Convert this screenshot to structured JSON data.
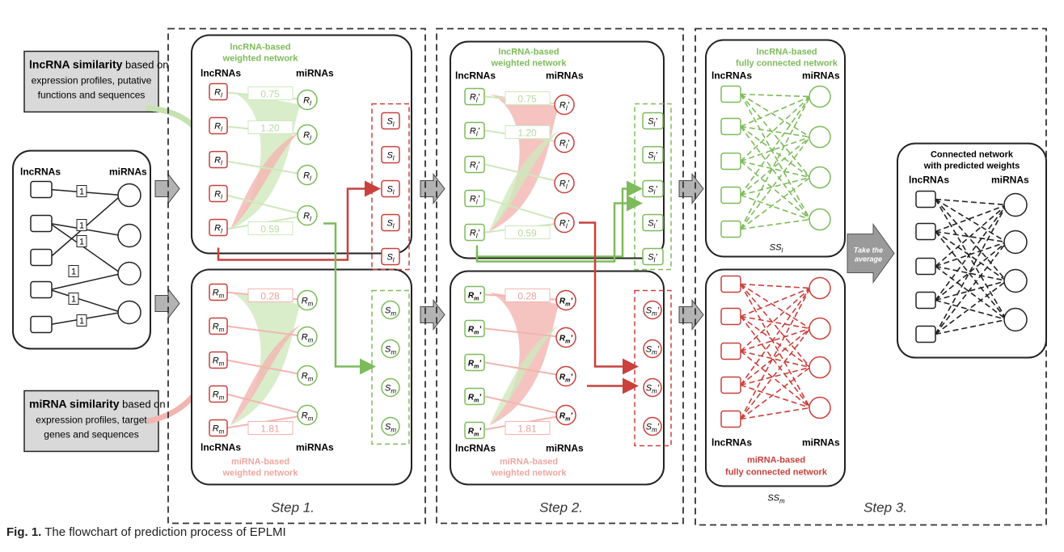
{
  "caption": {
    "label": "Fig. 1.",
    "text": "The flowchart of prediction process of EPLMI"
  },
  "input_network": {
    "lnc_label": "lncRNAs",
    "mi_label": "miRNAs",
    "edge_weight": "1"
  },
  "notes": {
    "lnc_bold": "lncRNA similarity",
    "lnc_lines": [
      "based on",
      "expression profiles, putative",
      "functions and sequences"
    ],
    "mi_bold": "miRNA similarity",
    "mi_lines": [
      "based on",
      "expression profiles, target",
      "genes and sequences"
    ]
  },
  "step1": {
    "label": "Step 1.",
    "lnc_net_title": [
      "lncRNA-based",
      "weighted network"
    ],
    "mi_net_title": [
      "miRNA-based",
      "weighted network"
    ],
    "lnc_col": "lncRNAs",
    "mi_col": "miRNAs",
    "node_R_l": "R",
    "sub_l": "l",
    "sub_m": "m",
    "lnc_weights": [
      "0.75",
      "1.20",
      "0.59"
    ],
    "mi_weights": [
      "0.28",
      "1.81"
    ],
    "S_l": "S",
    "S_m": "S"
  },
  "step2": {
    "label": "Step 2.",
    "lnc_net_title": [
      "lncRNA-based",
      "weighted network"
    ],
    "mi_net_title": [
      "miRNA-based",
      "weighted network"
    ],
    "lnc_col": "lncRNAs",
    "mi_col": "miRNAs",
    "prime": "’",
    "lnc_weights": [
      "0.75",
      "1.20",
      "0.59"
    ],
    "mi_weights": [
      "0.28",
      "1.81"
    ]
  },
  "step3": {
    "label": "Step 3.",
    "lnc_net_title": [
      "lncRNA-based",
      "fully connected network"
    ],
    "mi_net_title": [
      "miRNA-based",
      "fully connected network"
    ],
    "lnc_col": "lncRNAs",
    "mi_col": "miRNAs",
    "ss_l": "SS",
    "ss_m": "SS",
    "take_average": [
      "Take the",
      "average"
    ],
    "final_title": [
      "Connected network",
      "with predicted weights"
    ]
  },
  "colors": {
    "green": "#7dbb5a",
    "red": "#c9403c",
    "gray": "#9a9a9a",
    "dark": "#222222"
  }
}
